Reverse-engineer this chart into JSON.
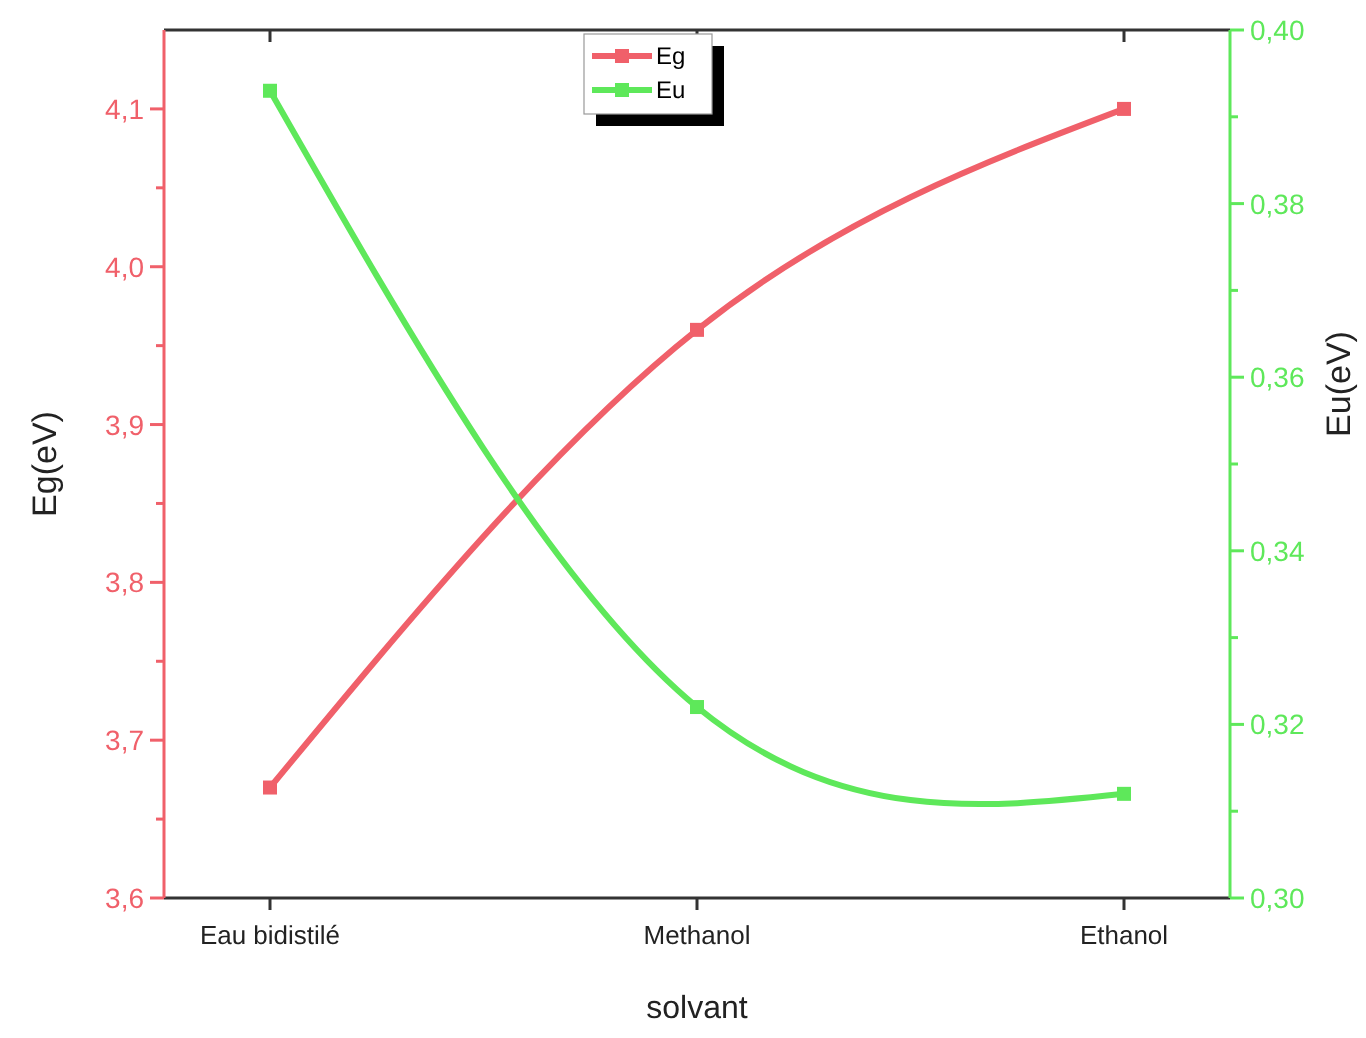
{
  "chart_data": {
    "type": "line",
    "xlabel": "solvant",
    "ylabel": "Eg(eV)",
    "y2label": "Eu(eV)",
    "categories": [
      "Eau bidistilé",
      "Methanol",
      "Ethanol"
    ],
    "series": [
      {
        "name": "Eg",
        "color": "#f0606a",
        "values": [
          3.67,
          3.96,
          4.1
        ]
      },
      {
        "name": "Eu",
        "color": "#5ee85a",
        "values": [
          0.393,
          0.322,
          0.312
        ],
        "axis": "y2"
      }
    ],
    "ylim": [
      3.6,
      4.15
    ],
    "yticks": [
      {
        "value": 3.6,
        "label": "3,6"
      },
      {
        "value": 3.65,
        "label": null
      },
      {
        "value": 3.7,
        "label": "3,7"
      },
      {
        "value": 3.75,
        "label": null
      },
      {
        "value": 3.8,
        "label": "3,8"
      },
      {
        "value": 3.85,
        "label": null
      },
      {
        "value": 3.9,
        "label": "3,9"
      },
      {
        "value": 3.95,
        "label": null
      },
      {
        "value": 4.0,
        "label": "4,0"
      },
      {
        "value": 4.05,
        "label": null
      },
      {
        "value": 4.1,
        "label": "4,1"
      }
    ],
    "y2lim": [
      0.3,
      0.4
    ],
    "y2ticks": [
      {
        "value": 0.3,
        "label": "0,30"
      },
      {
        "value": 0.31,
        "label": null
      },
      {
        "value": 0.32,
        "label": "0,32"
      },
      {
        "value": 0.33,
        "label": null
      },
      {
        "value": 0.34,
        "label": "0,34"
      },
      {
        "value": 0.35,
        "label": null
      },
      {
        "value": 0.36,
        "label": "0,36"
      },
      {
        "value": 0.37,
        "label": null
      },
      {
        "value": 0.38,
        "label": "0,38"
      },
      {
        "value": 0.39,
        "label": null
      },
      {
        "value": 0.4,
        "label": "0,40"
      }
    ],
    "legend": "top",
    "marker": "square",
    "line_style": "solid",
    "grid": false
  }
}
